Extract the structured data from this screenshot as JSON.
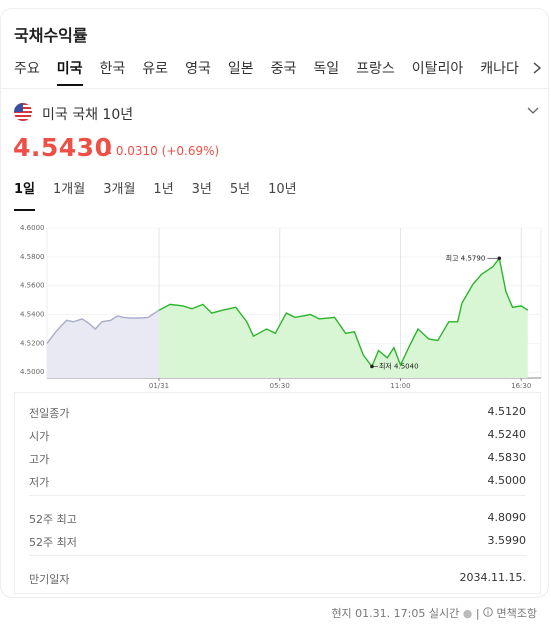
{
  "title": "국채수익률",
  "tabs": [
    "주요",
    "미국",
    "한국",
    "유로",
    "영국",
    "일본",
    "중국",
    "독일",
    "프랑스",
    "이탈리아",
    "캐나다"
  ],
  "quote": {
    "name": "미국 국채 10년",
    "price": "4.5430",
    "change": "0.0310",
    "change_percent": "(+0.69%)"
  },
  "periods": [
    "1일",
    "1개월",
    "3개월",
    "1년",
    "3년",
    "5년",
    "10년"
  ],
  "chart_data": {
    "type": "line",
    "series": [
      {
        "color": "#a9abcb",
        "x": [
          -5.1,
          -4.7,
          -4.4,
          -4.2,
          -3.9,
          -3.5,
          -3.2,
          -2.9,
          -2.6,
          -2.2,
          -1.9,
          -1.6,
          -1.3,
          -0.9,
          -0.5,
          0
        ],
        "values": [
          4.52,
          4.528,
          4.533,
          4.536,
          4.535,
          4.537,
          4.534,
          4.53,
          4.535,
          4.536,
          4.539,
          4.538,
          4.5375,
          4.5375,
          4.538,
          4.543
        ]
      },
      {
        "color": "#2cb52c",
        "x": [
          0,
          0.5,
          1.1,
          1.5,
          2,
          2.4,
          2.9,
          3.5,
          4,
          4.3,
          4.9,
          5.3,
          5.8,
          6.2,
          6.9,
          7.3,
          8,
          8.5,
          8.9,
          9.3,
          9.7,
          10,
          10.4,
          10.7,
          11,
          11.4,
          11.8,
          12.3,
          12.7,
          13.2,
          13.6,
          13.8,
          14.3,
          14.7,
          15.2,
          15.5,
          15.8,
          16.1,
          16.5,
          16.8
        ],
        "values": [
          4.543,
          4.547,
          4.546,
          4.544,
          4.547,
          4.541,
          4.543,
          4.545,
          4.535,
          4.525,
          4.53,
          4.527,
          4.541,
          4.538,
          4.54,
          4.537,
          4.538,
          4.527,
          4.528,
          4.512,
          4.504,
          4.515,
          4.51,
          4.517,
          4.505,
          4.518,
          4.53,
          4.523,
          4.522,
          4.535,
          4.535,
          4.548,
          4.561,
          4.568,
          4.573,
          4.579,
          4.556,
          4.545,
          4.546,
          4.543
        ]
      }
    ],
    "xlim": [
      -5.1,
      17.4
    ],
    "xticks": [
      {
        "value": 0,
        "label": "01/31"
      },
      {
        "value": 5.5,
        "label": "05:30"
      },
      {
        "value": 11,
        "label": "11:00"
      },
      {
        "value": 16.5,
        "label": "16:30"
      }
    ],
    "ylim": [
      4.496,
      4.6
    ],
    "yticks": [
      {
        "value": 4.5,
        "label": "4.5000"
      },
      {
        "value": 4.52,
        "label": "4.5200"
      },
      {
        "value": 4.54,
        "label": "4.5400"
      },
      {
        "value": 4.56,
        "label": "4.5600"
      },
      {
        "value": 4.58,
        "label": "4.5800"
      },
      {
        "value": 4.6,
        "label": "4.6000"
      }
    ],
    "grid": true,
    "annotations": [
      {
        "text": "최고 4.5790",
        "series": 1,
        "index": 35
      },
      {
        "text": "최저 4.5040",
        "series": 1,
        "index": 20
      }
    ]
  },
  "stat_groups": [
    [
      {
        "label": "전일종가",
        "value": "4.5120"
      },
      {
        "label": "시가",
        "value": "4.5240"
      },
      {
        "label": "고가",
        "value": "4.5830"
      },
      {
        "label": "저가",
        "value": "4.5000"
      }
    ],
    [
      {
        "label": "52주 최고",
        "value": "4.8090"
      },
      {
        "label": "52주 최저",
        "value": "3.5990"
      }
    ],
    [
      {
        "label": "만기일자",
        "value": "2034.11.15."
      }
    ]
  ],
  "footer": {
    "time": "현지 01.31. 17:05 실시간",
    "disclaimer": "면책조항"
  }
}
